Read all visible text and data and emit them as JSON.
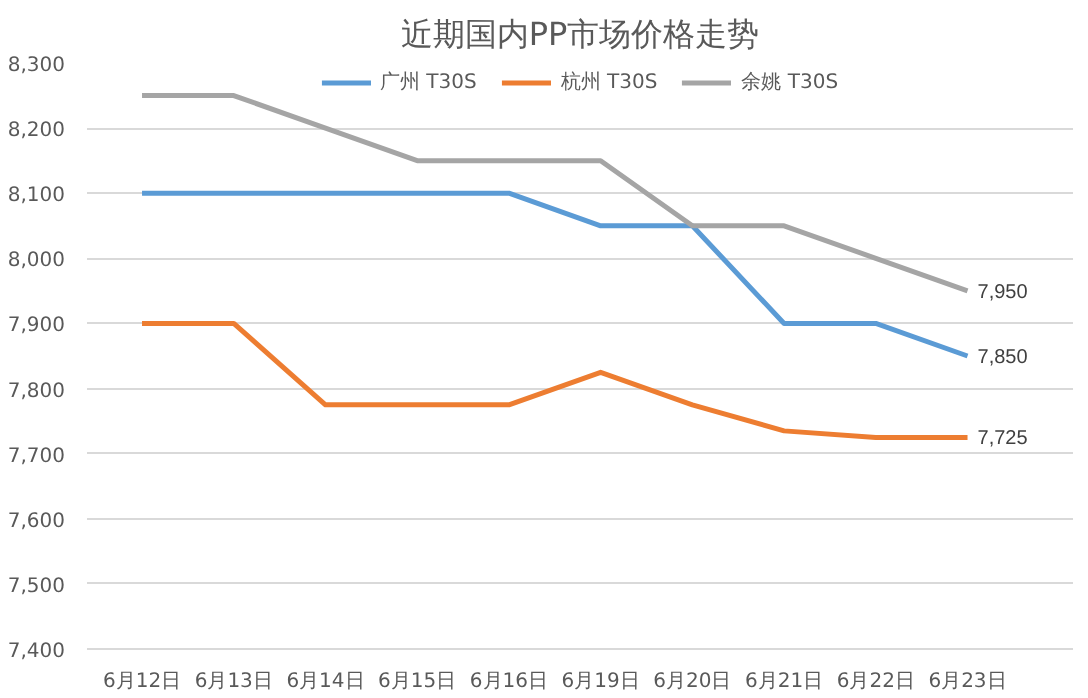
{
  "chart_data": {
    "type": "line",
    "title": "近期国内PP市场价格走势",
    "categories": [
      "6月12日",
      "6月13日",
      "6月14日",
      "6月15日",
      "6月16日",
      "6月19日",
      "6月20日",
      "6月21日",
      "6月22日",
      "6月23日"
    ],
    "series": [
      {
        "name": "广州 T30S",
        "color": "#5b9bd5",
        "values": [
          8100,
          8100,
          8100,
          8100,
          8100,
          8050,
          8050,
          7900,
          7900,
          7850
        ],
        "value_labels": [
          null,
          null,
          null,
          null,
          null,
          null,
          null,
          null,
          null,
          "7,850"
        ]
      },
      {
        "name": "杭州 T30S",
        "color": "#ed7d31",
        "values": [
          7900,
          7900,
          7775,
          7775,
          7775,
          7825,
          7775,
          7735,
          7725,
          7725
        ],
        "value_labels": [
          null,
          null,
          null,
          null,
          null,
          null,
          null,
          null,
          null,
          "7,725"
        ]
      },
      {
        "name": "余姚 T30S",
        "color": "#a5a5a5",
        "values": [
          8250,
          8250,
          8200,
          8150,
          8150,
          8150,
          8050,
          8050,
          8000,
          7950
        ],
        "value_labels": [
          null,
          null,
          null,
          null,
          null,
          null,
          null,
          null,
          null,
          "7,950"
        ]
      }
    ],
    "ylim": [
      7400,
      8300
    ],
    "yticks": [
      {
        "value": 7400,
        "label": "7,400"
      },
      {
        "value": 7500,
        "label": "7,500"
      },
      {
        "value": 7600,
        "label": "7,600"
      },
      {
        "value": 7700,
        "label": "7,700"
      },
      {
        "value": 7800,
        "label": "7,800"
      },
      {
        "value": 7900,
        "label": "7,900"
      },
      {
        "value": 8000,
        "label": "8,000"
      },
      {
        "value": 8100,
        "label": "8,100"
      },
      {
        "value": 8200,
        "label": "8,200"
      },
      {
        "value": 8300,
        "label": "8,300"
      }
    ],
    "grid": "y",
    "legend": "top",
    "marker": "none",
    "line_style": "solid"
  }
}
